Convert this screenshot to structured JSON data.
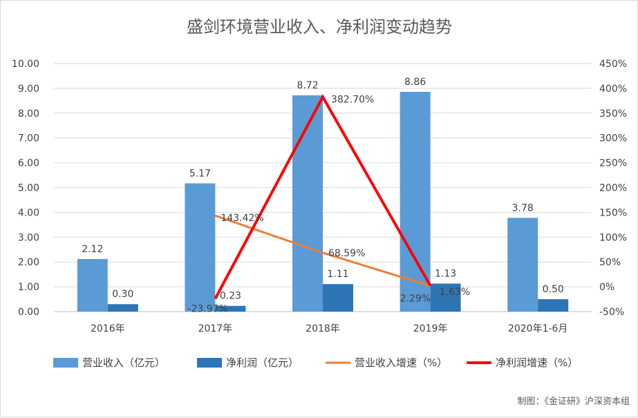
{
  "chart_data": {
    "type": "bar",
    "title": "盛剑环境营业收入、净利润变动趋势",
    "categories": [
      "2016年",
      "2017年",
      "2018年",
      "2019年",
      "2020年1-6月"
    ],
    "y_left": {
      "ylim": [
        0,
        10
      ],
      "ticks": [
        "0.00",
        "1.00",
        "2.00",
        "3.00",
        "4.00",
        "5.00",
        "6.00",
        "7.00",
        "8.00",
        "9.00",
        "10.00"
      ]
    },
    "y_right": {
      "ylim": [
        -50,
        450
      ],
      "ticks": [
        "-50%",
        "0%",
        "50%",
        "100%",
        "150%",
        "200%",
        "250%",
        "300%",
        "350%",
        "400%",
        "450%"
      ]
    },
    "series": [
      {
        "name": "营业收入（亿元）",
        "kind": "bar",
        "axis": "left",
        "color": "#5b9bd5",
        "values": [
          2.12,
          5.17,
          8.72,
          8.86,
          3.78
        ],
        "labels": [
          "2.12",
          "5.17",
          "8.72",
          "8.86",
          "3.78"
        ]
      },
      {
        "name": "净利润（亿元）",
        "kind": "bar",
        "axis": "left",
        "color": "#2e75b6",
        "values": [
          0.3,
          0.23,
          1.11,
          1.13,
          0.5
        ],
        "labels": [
          "0.30",
          "0.23",
          "1.11",
          "1.13",
          "0.50"
        ]
      },
      {
        "name": "营业收入增速（%）",
        "kind": "line",
        "axis": "right",
        "color": "#ed7d31",
        "values": [
          null,
          143.42,
          68.59,
          1.63,
          null
        ],
        "labels": [
          null,
          "143.42%",
          "68.59%",
          "1.63%",
          null
        ]
      },
      {
        "name": "净利润增速（%）",
        "kind": "line",
        "axis": "right",
        "color": "#ff0000",
        "values": [
          null,
          -23.97,
          382.7,
          2.29,
          null
        ],
        "labels": [
          null,
          "-23.97%",
          "382.70%",
          "2.29%",
          null
        ]
      }
    ],
    "grid": true,
    "legend_position": "bottom"
  },
  "credit": "制图：《金证研》沪深资本组"
}
